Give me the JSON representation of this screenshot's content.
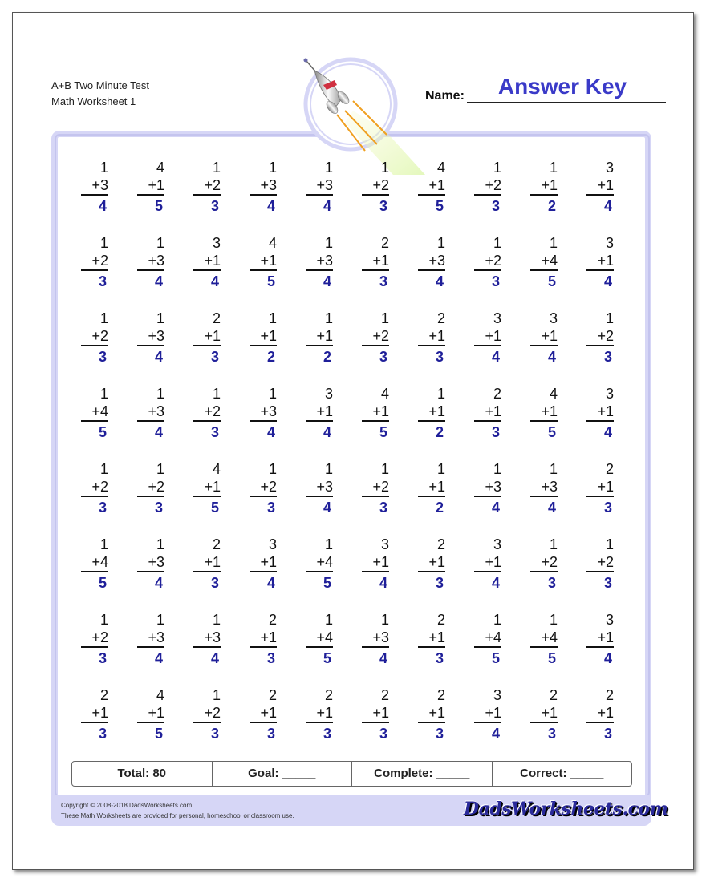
{
  "header": {
    "title_line1": "A+B Two Minute Test",
    "title_line2": "Math Worksheet 1",
    "name_label": "Name:",
    "name_value": "Answer Key"
  },
  "colors": {
    "answer": "#1f1f99",
    "frame": "#d6d6f6",
    "answer_key": "#3a3ac8"
  },
  "problems": [
    [
      [
        1,
        3,
        4
      ],
      [
        4,
        1,
        5
      ],
      [
        1,
        2,
        3
      ],
      [
        1,
        3,
        4
      ],
      [
        1,
        3,
        4
      ],
      [
        1,
        2,
        3
      ],
      [
        4,
        1,
        5
      ],
      [
        1,
        2,
        3
      ],
      [
        1,
        1,
        2
      ],
      [
        3,
        1,
        4
      ]
    ],
    [
      [
        1,
        2,
        3
      ],
      [
        1,
        3,
        4
      ],
      [
        3,
        1,
        4
      ],
      [
        4,
        1,
        5
      ],
      [
        1,
        3,
        4
      ],
      [
        2,
        1,
        3
      ],
      [
        1,
        3,
        4
      ],
      [
        1,
        2,
        3
      ],
      [
        1,
        4,
        5
      ],
      [
        3,
        1,
        4
      ]
    ],
    [
      [
        1,
        2,
        3
      ],
      [
        1,
        3,
        4
      ],
      [
        2,
        1,
        3
      ],
      [
        1,
        1,
        2
      ],
      [
        1,
        1,
        2
      ],
      [
        1,
        2,
        3
      ],
      [
        2,
        1,
        3
      ],
      [
        3,
        1,
        4
      ],
      [
        3,
        1,
        4
      ],
      [
        1,
        2,
        3
      ]
    ],
    [
      [
        1,
        4,
        5
      ],
      [
        1,
        3,
        4
      ],
      [
        1,
        2,
        3
      ],
      [
        1,
        3,
        4
      ],
      [
        3,
        1,
        4
      ],
      [
        4,
        1,
        5
      ],
      [
        1,
        1,
        2
      ],
      [
        2,
        1,
        3
      ],
      [
        4,
        1,
        5
      ],
      [
        3,
        1,
        4
      ]
    ],
    [
      [
        1,
        2,
        3
      ],
      [
        1,
        2,
        3
      ],
      [
        4,
        1,
        5
      ],
      [
        1,
        2,
        3
      ],
      [
        1,
        3,
        4
      ],
      [
        1,
        2,
        3
      ],
      [
        1,
        1,
        2
      ],
      [
        1,
        3,
        4
      ],
      [
        1,
        3,
        4
      ],
      [
        2,
        1,
        3
      ]
    ],
    [
      [
        1,
        4,
        5
      ],
      [
        1,
        3,
        4
      ],
      [
        2,
        1,
        3
      ],
      [
        3,
        1,
        4
      ],
      [
        1,
        4,
        5
      ],
      [
        3,
        1,
        4
      ],
      [
        2,
        1,
        3
      ],
      [
        3,
        1,
        4
      ],
      [
        1,
        2,
        3
      ],
      [
        1,
        2,
        3
      ]
    ],
    [
      [
        1,
        2,
        3
      ],
      [
        1,
        3,
        4
      ],
      [
        1,
        3,
        4
      ],
      [
        2,
        1,
        3
      ],
      [
        1,
        4,
        5
      ],
      [
        1,
        3,
        4
      ],
      [
        2,
        1,
        3
      ],
      [
        1,
        4,
        5
      ],
      [
        1,
        4,
        5
      ],
      [
        3,
        1,
        4
      ]
    ],
    [
      [
        2,
        1,
        3
      ],
      [
        4,
        1,
        5
      ],
      [
        1,
        2,
        3
      ],
      [
        2,
        1,
        3
      ],
      [
        2,
        1,
        3
      ],
      [
        2,
        1,
        3
      ],
      [
        2,
        1,
        3
      ],
      [
        3,
        1,
        4
      ],
      [
        2,
        1,
        3
      ],
      [
        2,
        1,
        3
      ]
    ]
  ],
  "score": {
    "total": "Total: 80",
    "goal": "Goal: _____",
    "complete": "Complete: _____",
    "correct": "Correct: _____"
  },
  "footer": {
    "copyright": "Copyright © 2008-2018 DadsWorksheets.com",
    "note": "These Math Worksheets are provided for personal, homeschool or classroom use.",
    "logo": "DadsWorksheets.com"
  },
  "icons": {
    "header_image": "rocket-icon"
  }
}
